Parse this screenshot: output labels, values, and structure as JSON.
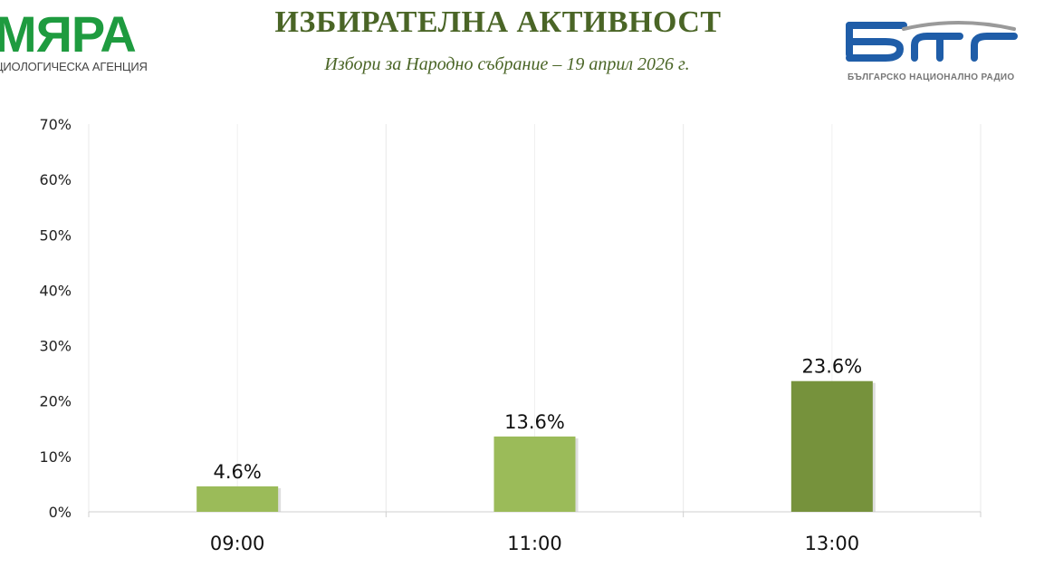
{
  "header": {
    "title": "ИЗБИРАТЕЛНА АКТИВНОСТ",
    "subtitle": "Избори за Народно събрание – 19 април 2026 г."
  },
  "logo_left": {
    "brand": "МЯРА",
    "tagline": "ЦИОЛОГИЧЕСКА АГЕНЦИЯ"
  },
  "logo_right": {
    "tagline": "БЪЛГАРСКО НАЦИОНАЛНО РАДИО"
  },
  "colors": {
    "title": "#4a6526",
    "brand_green": "#1e9b3f",
    "bnr_blue": "#1f5da8",
    "bar_light": "#9bbb59",
    "bar_dark": "#76923c"
  },
  "chart_data": {
    "type": "bar",
    "categories": [
      "09:00",
      "11:00",
      "13:00"
    ],
    "values": [
      4.6,
      13.6,
      23.6
    ],
    "data_labels": [
      "4.6%",
      "13.6%",
      "23.6%"
    ],
    "bar_colors": [
      "#9bbb59",
      "#9bbb59",
      "#76923c"
    ],
    "ylim": [
      0,
      70
    ],
    "yticks": [
      0,
      10,
      20,
      30,
      40,
      50,
      60,
      70
    ],
    "ytick_labels": [
      "0%",
      "10%",
      "20%",
      "30%",
      "40%",
      "50%",
      "60%",
      "70%"
    ],
    "grid": "vertical",
    "legend": "none"
  }
}
